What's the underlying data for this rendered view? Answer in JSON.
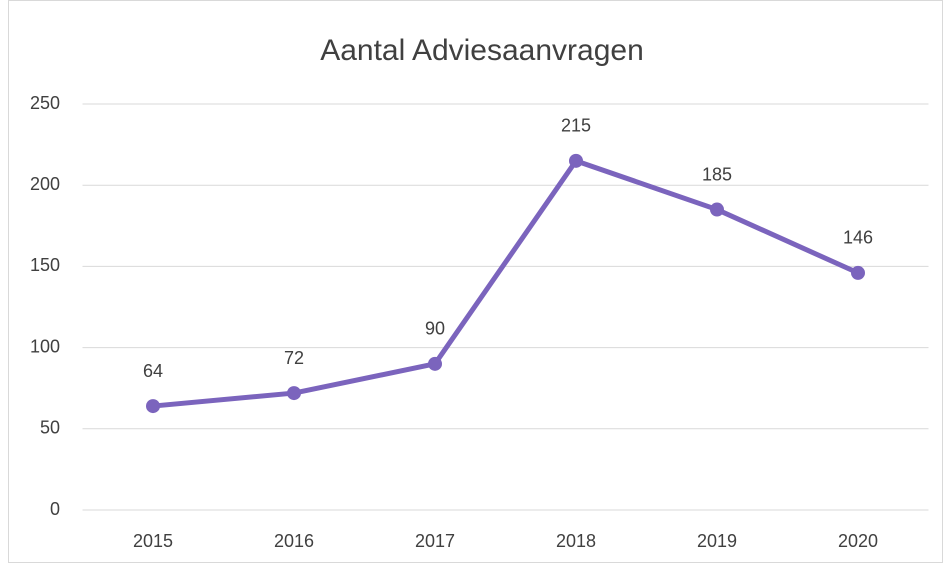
{
  "chart_data": {
    "type": "line",
    "title": "Aantal Adviesaanvragen",
    "categories": [
      "2015",
      "2016",
      "2017",
      "2018",
      "2019",
      "2020"
    ],
    "series": [
      {
        "name": "Aantal Adviesaanvragen",
        "color": "#7b64bd",
        "values": [
          64,
          72,
          90,
          215,
          185,
          146
        ]
      }
    ],
    "ylim": [
      0,
      250
    ],
    "yticks": [
      0,
      50,
      100,
      150,
      200,
      250
    ],
    "grid": true
  }
}
